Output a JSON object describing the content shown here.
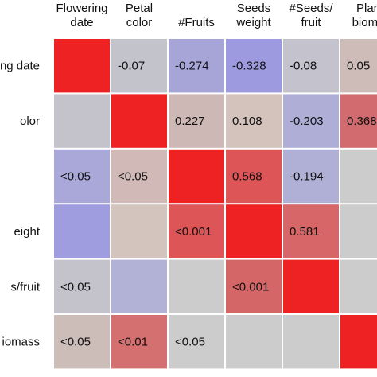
{
  "chart_data": {
    "type": "heatmap",
    "title": "",
    "columns": [
      [
        "Flowering",
        "date"
      ],
      [
        "Petal",
        "color"
      ],
      [
        "#Fruits"
      ],
      [
        "Seeds",
        "weight"
      ],
      [
        "#Seeds/",
        "fruit"
      ],
      [
        "Plan",
        "bioma"
      ]
    ],
    "rows": [
      "ng date",
      "olor",
      "",
      "eight",
      "s/fruit",
      "iomass"
    ],
    "cell_labels": [
      [
        "",
        "-0.07",
        "-0.274",
        "-0.328",
        "-0.08",
        "0.05"
      ],
      [
        "",
        "",
        "0.227",
        "0.108",
        "-0.203",
        "0.368"
      ],
      [
        "<0.05",
        "<0.05",
        "",
        "0.568",
        "-0.194",
        ""
      ],
      [
        "",
        "",
        "<0.001",
        "",
        "0.581",
        ""
      ],
      [
        "<0.05",
        "",
        "",
        "<0.001",
        "",
        ""
      ],
      [
        "<0.05",
        "<0.01",
        "<0.05",
        "",
        "",
        ""
      ]
    ],
    "cell_colors": [
      [
        "#ee2222",
        "#c3c3cb",
        "#a7a4d8",
        "#9d9ae0",
        "#c3c2cd",
        "#cdbcb8"
      ],
      [
        "#c4c3cc",
        "#ee2222",
        "#ceb8b6",
        "#d4c3bd",
        "#afaed6",
        "#d16b6f"
      ],
      [
        "#a9a8d9",
        "#d0b9b6",
        "#ee2222",
        "#de5558",
        "#b0afd6",
        "#cccccc"
      ],
      [
        "#9f9de0",
        "#d3c4bd",
        "#de5557",
        "#ee2222",
        "#d66668",
        "#cccccc"
      ],
      [
        "#c4c3cc",
        "#b2b1d6",
        "#cccccc",
        "#d56667",
        "#ee2222",
        "#cccccc"
      ],
      [
        "#cdbdb9",
        "#d4706f",
        "#cccccc",
        "#cccccc",
        "#cccccc",
        "#ee2222"
      ]
    ]
  }
}
